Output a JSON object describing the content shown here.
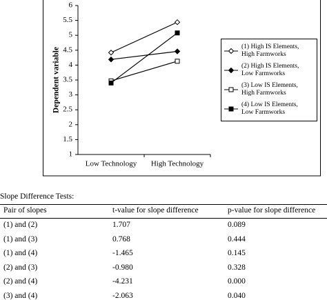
{
  "chart_data": {
    "type": "line",
    "y_label": "Dependent variable",
    "categories": [
      "Low Technology",
      "High Technology"
    ],
    "series": [
      {
        "name": "(1) High IS Elements, High Farmworks",
        "color": "#000000",
        "marker": "diamond-open",
        "values": [
          4.42,
          5.44
        ]
      },
      {
        "name": "(2) High IS Elements, Low Farmworks",
        "color": "#000000",
        "marker": "diamond-filled",
        "values": [
          4.19,
          4.46
        ]
      },
      {
        "name": "(3) Low IS Elements, High Farmworks",
        "color": "#000000",
        "marker": "square-open",
        "values": [
          3.47,
          4.13
        ]
      },
      {
        "name": "(4) Low IS Elements, Low Farmworks",
        "color": "#000000",
        "marker": "square-filled",
        "values": [
          3.4,
          5.08
        ]
      }
    ],
    "ylim": [
      1,
      6
    ],
    "yticks": [
      1,
      1.5,
      2,
      2.5,
      3,
      3.5,
      4,
      4.5,
      5,
      5.5,
      6
    ],
    "grid": false
  },
  "table": {
    "title": "Slope Difference Tests:",
    "header": [
      "Pair of slopes",
      "t-value for slope difference",
      "p-value for slope difference"
    ],
    "rows": [
      [
        "(1) and (2)",
        "1.707",
        "0.089"
      ],
      [
        "(1) and (3)",
        "0.768",
        "0.444"
      ],
      [
        "(1) and (4)",
        "-1.465",
        "0.145"
      ],
      [
        "(2) and (3)",
        "-0.980",
        "0.328"
      ],
      [
        "(2) and (4)",
        "-4.231",
        "0.000"
      ],
      [
        "(3) and (4)",
        "-2.063",
        "0.040"
      ]
    ]
  }
}
